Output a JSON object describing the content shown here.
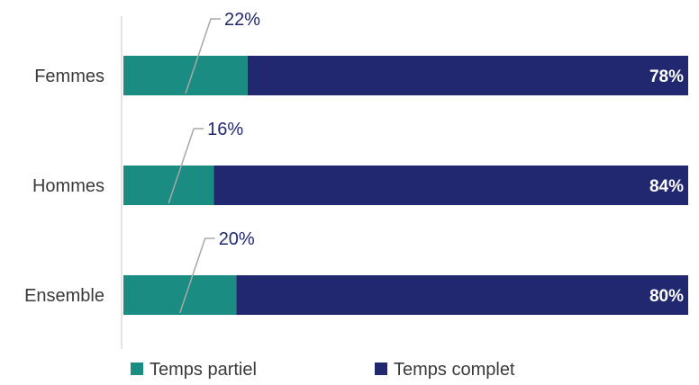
{
  "chart_data": {
    "type": "bar",
    "orientation": "horizontal",
    "stacked": true,
    "percent": true,
    "categories": [
      "Femmes",
      "Hommes",
      "Ensemble"
    ],
    "series": [
      {
        "name": "Temps partiel",
        "values": [
          22,
          16,
          20
        ],
        "color": "#1a8c82"
      },
      {
        "name": "Temps complet",
        "values": [
          78,
          84,
          80
        ],
        "color": "#21286f"
      }
    ],
    "value_labels": {
      "Temps partiel": [
        "22%",
        "16%",
        "20%"
      ],
      "Temps complet": [
        "78%",
        "84%",
        "80%"
      ]
    },
    "xlim": [
      0,
      100
    ],
    "legend_position": "bottom",
    "grid": false
  }
}
